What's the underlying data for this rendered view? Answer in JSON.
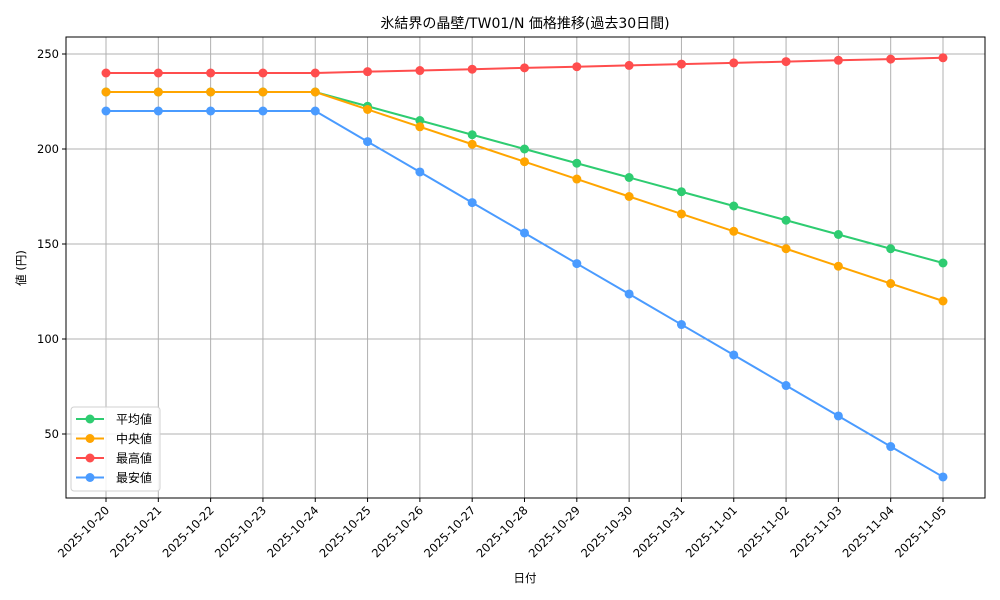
{
  "chart_data": {
    "type": "line",
    "title": "氷結界の晶壁/TW01/N 価格推移(過去30日間)",
    "xlabel": "日付",
    "ylabel": "値 (円)",
    "ylim": [
      15,
      259
    ],
    "yticks": [
      50,
      100,
      150,
      200,
      250
    ],
    "grid": true,
    "legend_position": "lower left",
    "x": [
      "2025-10-20",
      "2025-10-21",
      "2025-10-22",
      "2025-10-23",
      "2025-10-24",
      "2025-10-25",
      "2025-10-26",
      "2025-10-27",
      "2025-10-28",
      "2025-10-29",
      "2025-10-30",
      "2025-10-31",
      "2025-11-01",
      "2025-11-02",
      "2025-11-03",
      "2025-11-04",
      "2025-11-05"
    ],
    "series": [
      {
        "name": "平均値",
        "color": "#2ecc71",
        "values": [
          230,
          230,
          230,
          230,
          230,
          222.5,
          215,
          207.5,
          200,
          192.5,
          185,
          177.5,
          170,
          162.5,
          155,
          147.5,
          140
        ]
      },
      {
        "name": "中央値",
        "color": "#ffa500",
        "values": [
          230,
          230,
          230,
          230,
          230,
          220.8,
          211.7,
          202.5,
          193.3,
          184.2,
          175,
          165.8,
          156.7,
          147.5,
          138.3,
          129.2,
          120
        ]
      },
      {
        "name": "最高値",
        "color": "#ff4d4d",
        "values": [
          240,
          240,
          240,
          240,
          240,
          240.7,
          241.3,
          242,
          242.7,
          243.3,
          244,
          244.7,
          245.3,
          246,
          246.7,
          247.3,
          248
        ]
      },
      {
        "name": "最安値",
        "color": "#4a9bff",
        "values": [
          220,
          220,
          220,
          220,
          220,
          203.9,
          187.9,
          171.8,
          155.8,
          139.7,
          123.7,
          107.6,
          91.6,
          75.5,
          59.5,
          43.4,
          27.4
        ]
      }
    ]
  }
}
